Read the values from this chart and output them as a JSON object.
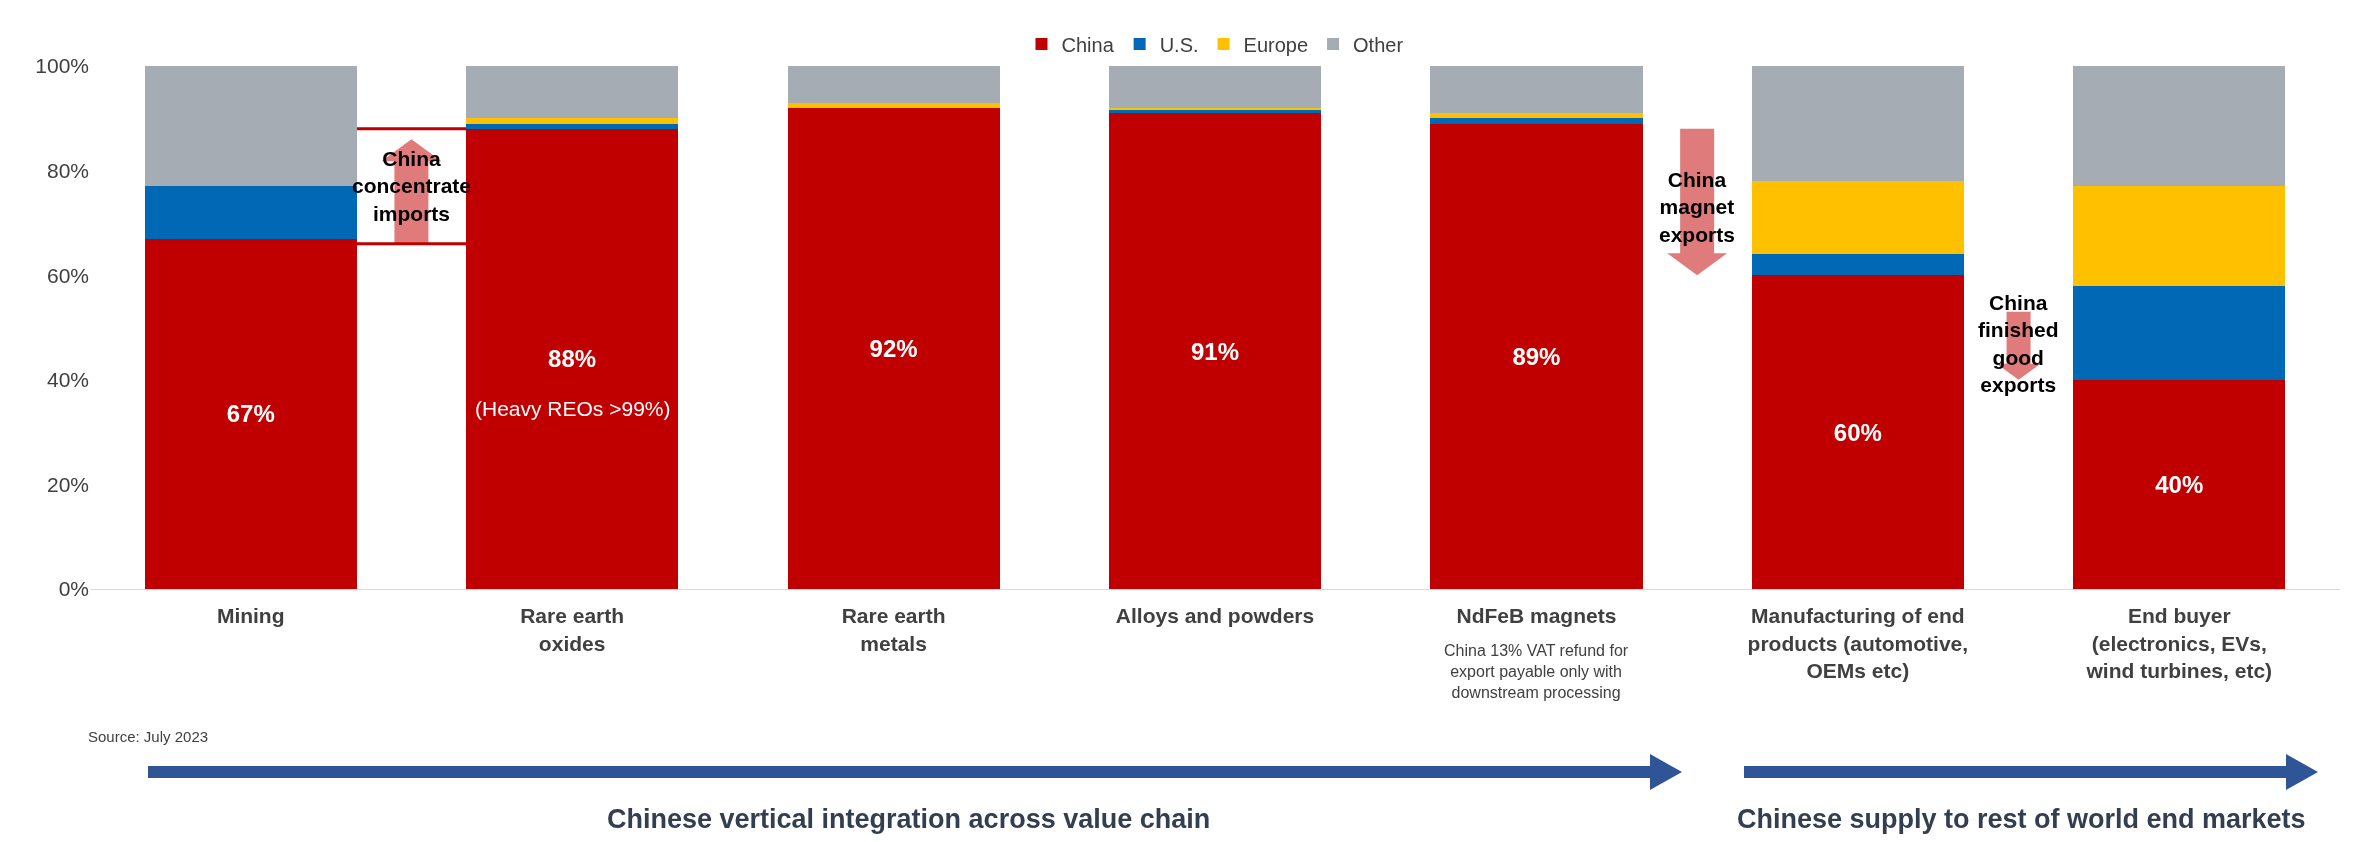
{
  "chart_data": {
    "type": "bar",
    "stacked": true,
    "categories": [
      "Mining",
      "Rare earth\noxides",
      "Rare earth\nmetals",
      "Alloys and powders",
      "NdFeB magnets",
      "Manufacturing of end\nproducts (automotive,\nOEMs etc)",
      "End buyer\n(electronics, EVs,\nwind turbines, etc)"
    ],
    "series": [
      {
        "name": "China",
        "color": "#c00000",
        "values": [
          67,
          88,
          92,
          91,
          89,
          60,
          40
        ],
        "value_labels": [
          "67%",
          "88%",
          "92%",
          "91%",
          "89%",
          "60%",
          "40%"
        ]
      },
      {
        "name": "U.S.",
        "color": "#0068b5",
        "values": [
          10,
          1,
          0,
          0.5,
          1,
          4,
          18
        ]
      },
      {
        "name": "Europe",
        "color": "#ffc000",
        "values": [
          0,
          1,
          1,
          0.5,
          1,
          14,
          19
        ]
      },
      {
        "name": "Other",
        "color": "#a5acb4",
        "values": [
          23,
          10,
          7,
          8,
          9,
          22,
          23
        ]
      }
    ],
    "ylim": [
      0,
      100
    ],
    "yticks": [
      {
        "value": 0,
        "label": "0%"
      },
      {
        "value": 20,
        "label": "20%"
      },
      {
        "value": 40,
        "label": "40%"
      },
      {
        "value": 60,
        "label": "60%"
      },
      {
        "value": 80,
        "label": "80%"
      },
      {
        "value": 100,
        "label": "100%"
      }
    ],
    "grid": false,
    "legend": "top",
    "annotations": [
      "China\nconcentrate\nimports",
      "(Heavy REOs >99%)",
      "China\nmagnet\nexports",
      "China\nfinished\ngood\nexports",
      "China 13% VAT refund for\nexport payable only with\ndownstream processing",
      "Source: July 2023",
      "Chinese vertical integration across value chain",
      "Chinese supply to rest of world end markets"
    ]
  }
}
